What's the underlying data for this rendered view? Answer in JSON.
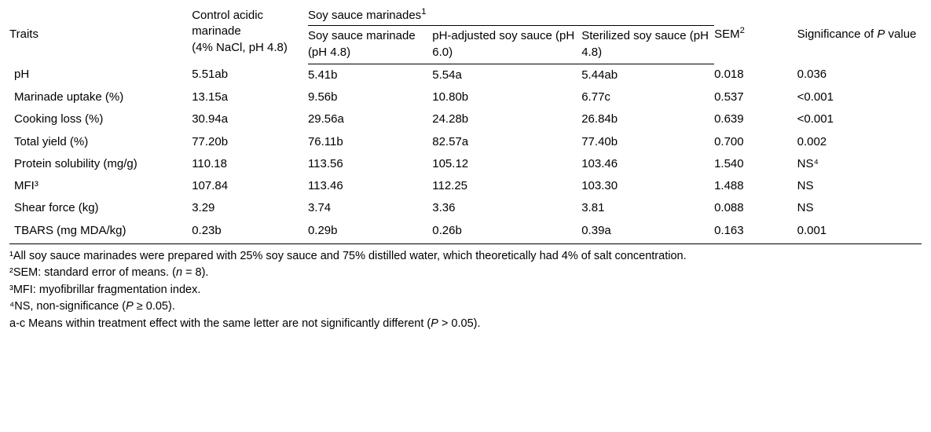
{
  "header": {
    "traits": "Traits",
    "control_line1": "Control acidic marinade",
    "control_line2": "(4% NaCl, pH 4.8)",
    "soy_group": "Soy sauce marinades",
    "soy1_line1": "Soy sauce marinade",
    "soy1_line2": "(pH 4.8)",
    "soy2": "pH-adjusted soy sauce (pH 6.0)",
    "soy3": "Sterilized soy sauce (pH 4.8)",
    "sem": "SEM",
    "sig_line1": "Significance of ",
    "sig_p": "P",
    "sig_line2": " value"
  },
  "rows": [
    {
      "trait": "pH",
      "control": "5.51ab",
      "s1": "5.41b",
      "s2": "5.54a",
      "s3": "5.44ab",
      "sem": "0.018",
      "sig": "0.036"
    },
    {
      "trait": "Marinade uptake (%)",
      "control": "13.15a",
      "s1": "9.56b",
      "s2": "10.80b",
      "s3": "6.77c",
      "sem": "0.537",
      "sig": "<0.001"
    },
    {
      "trait": "Cooking loss (%)",
      "control": "30.94a",
      "s1": "29.56a",
      "s2": "24.28b",
      "s3": "26.84b",
      "sem": "0.639",
      "sig": "<0.001"
    },
    {
      "trait": "Total yield (%)",
      "control": "77.20b",
      "s1": "76.11b",
      "s2": "82.57a",
      "s3": "77.40b",
      "sem": "0.700",
      "sig": "0.002"
    },
    {
      "trait": "Protein solubility (mg/g)",
      "control": "110.18",
      "s1": "113.56",
      "s2": "105.12",
      "s3": "103.46",
      "sem": "1.540",
      "sig": "NS⁴"
    },
    {
      "trait": "MFI³",
      "control": "107.84",
      "s1": "113.46",
      "s2": "112.25",
      "s3": "103.30",
      "sem": "1.488",
      "sig": "NS"
    },
    {
      "trait": "Shear force (kg)",
      "control": "3.29",
      "s1": "3.74",
      "s2": "3.36",
      "s3": "3.81",
      "sem": "0.088",
      "sig": "NS"
    },
    {
      "trait": "TBARS (mg MDA/kg)",
      "control": "0.23b",
      "s1": "0.29b",
      "s2": "0.26b",
      "s3": "0.39a",
      "sem": "0.163",
      "sig": "0.001"
    }
  ],
  "footnotes": {
    "f1": "¹All soy sauce marinades were prepared with 25% soy sauce and 75% distilled water, which theoretically had 4% of salt concentration.",
    "f2a": "²SEM: standard error of means. (",
    "f2n": "n",
    "f2b": " = 8).",
    "f3": "³MFI: myofibrillar fragmentation index.",
    "f4a": "⁴NS, non-significance (",
    "f4p": "P",
    "f4b": " ≥ 0.05).",
    "f5a": "a-c Means within treatment effect with the same letter are not significantly different (",
    "f5p": "P",
    "f5b": " > 0.05)."
  }
}
